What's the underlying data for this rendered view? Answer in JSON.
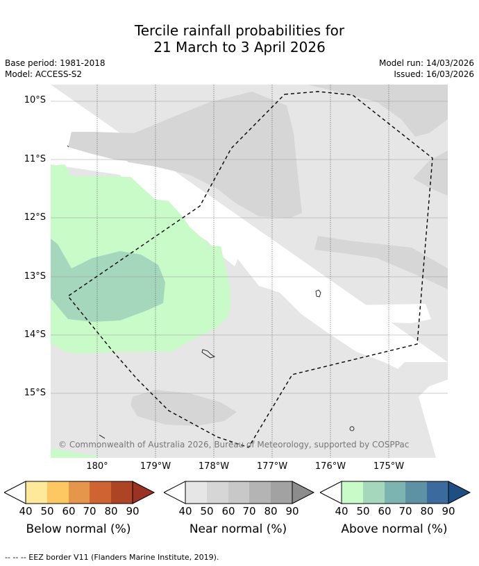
{
  "title_line1": "Tercile rainfall probabilities for",
  "title_line2": "21 March to 3 April 2026",
  "base_period": "Base period: 1981-2018",
  "model": "Model: ACCESS-S2",
  "model_run": "Model run: 14/03/2026",
  "issued": "Issued: 16/03/2026",
  "lat_labels": [
    "10°S",
    "11°S",
    "12°S",
    "13°S",
    "14°S",
    "15°S"
  ],
  "lon_labels": [
    "180°",
    "179°W",
    "178°W",
    "177°W",
    "176°W",
    "175°W"
  ],
  "copyright": "© Commonwealth of Australia 2026, Bureau of Meteorology, supported by COSPPac",
  "colorbars": [
    {
      "title": "Below normal (%)",
      "ticks": [
        "40",
        "50",
        "60",
        "70",
        "80",
        "90"
      ],
      "colors": [
        "#fee99a",
        "#fdc862",
        "#e5964a",
        "#cf6331",
        "#ad4524"
      ],
      "extend_color": "#9a3324"
    },
    {
      "title": "Near normal (%)",
      "ticks": [
        "40",
        "50",
        "60",
        "70",
        "80",
        "90"
      ],
      "colors": [
        "#e6e6e6",
        "#d6d6d6",
        "#c8c8c8",
        "#b4b4b4",
        "#a2a2a2"
      ],
      "extend_color": "#8c8c8c"
    },
    {
      "title": "Above normal (%)",
      "ticks": [
        "40",
        "50",
        "60",
        "70",
        "80",
        "90"
      ],
      "colors": [
        "#c8fbc8",
        "#a4d7bc",
        "#7cb4b1",
        "#5c92a3",
        "#3a6a9e"
      ],
      "extend_color": "#1d4e84"
    }
  ],
  "eez_legend": "-- -- -- EEZ border V11 (Flanders Marine Institute, 2019)."
}
